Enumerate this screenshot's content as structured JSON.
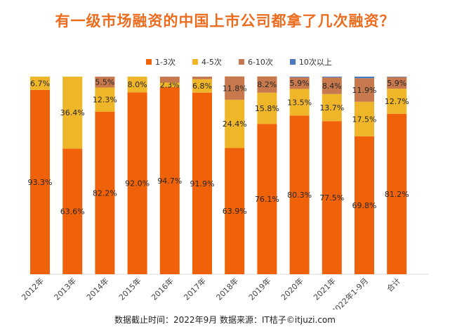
{
  "title": "有一级市场融资的中国上市公司都拿了几次融资？",
  "footer": "数据截止时间：2022年9月 数据来源：IT桔子©itjuzi.com",
  "colors": {
    "title": "#ec6c1f",
    "series": [
      "#f0620a",
      "#efb62a",
      "#c7794d",
      "#4a78c2"
    ]
  },
  "chart_data": {
    "type": "bar",
    "stacked": true,
    "normalized": true,
    "categories": [
      "2012年",
      "2013年",
      "2014年",
      "2015年",
      "2016年",
      "2017年",
      "2018年",
      "2019年",
      "2020年",
      "2021年",
      "2022年1-9月",
      "合计"
    ],
    "series": [
      {
        "name": "1-3次",
        "values": [
          93.3,
          63.6,
          82.2,
          92.0,
          94.7,
          91.9,
          63.9,
          76.1,
          80.3,
          77.5,
          69.8,
          81.2
        ],
        "labels": [
          "93.3%",
          "63.6%",
          "82.2%",
          "92.0%",
          "94.7%",
          "91.9%",
          "63.9%",
          "76.1%",
          "80.3%",
          "77.5%",
          "69.8%",
          "81.2%"
        ]
      },
      {
        "name": "4-5次",
        "values": [
          6.7,
          36.4,
          12.3,
          8.0,
          2.3,
          6.8,
          24.4,
          15.8,
          13.5,
          13.7,
          17.5,
          12.7
        ],
        "labels": [
          "6.7%",
          "36.4%",
          "12.3%",
          "8.0%",
          "2.3%",
          "6.8%",
          "24.4%",
          "15.8%",
          "13.5%",
          "13.7%",
          "17.5%",
          "12.7%"
        ]
      },
      {
        "name": "6-10次",
        "values": [
          0,
          0,
          5.5,
          0,
          3.0,
          1.3,
          11.8,
          8.2,
          5.9,
          8.4,
          11.9,
          5.9
        ],
        "labels": [
          "",
          "",
          "5.5%",
          "",
          "",
          "",
          "11.8%",
          "8.2%",
          "5.9%",
          "8.4%",
          "11.9%",
          "5.9%"
        ]
      },
      {
        "name": "10次以上",
        "values": [
          0,
          0,
          0,
          0,
          0,
          0,
          0,
          0,
          0.3,
          0.4,
          0.8,
          0.2
        ],
        "labels": [
          "",
          "",
          "",
          "",
          "",
          "",
          "",
          "",
          "",
          "",
          "",
          ""
        ]
      }
    ],
    "ylim": [
      0,
      100
    ]
  }
}
